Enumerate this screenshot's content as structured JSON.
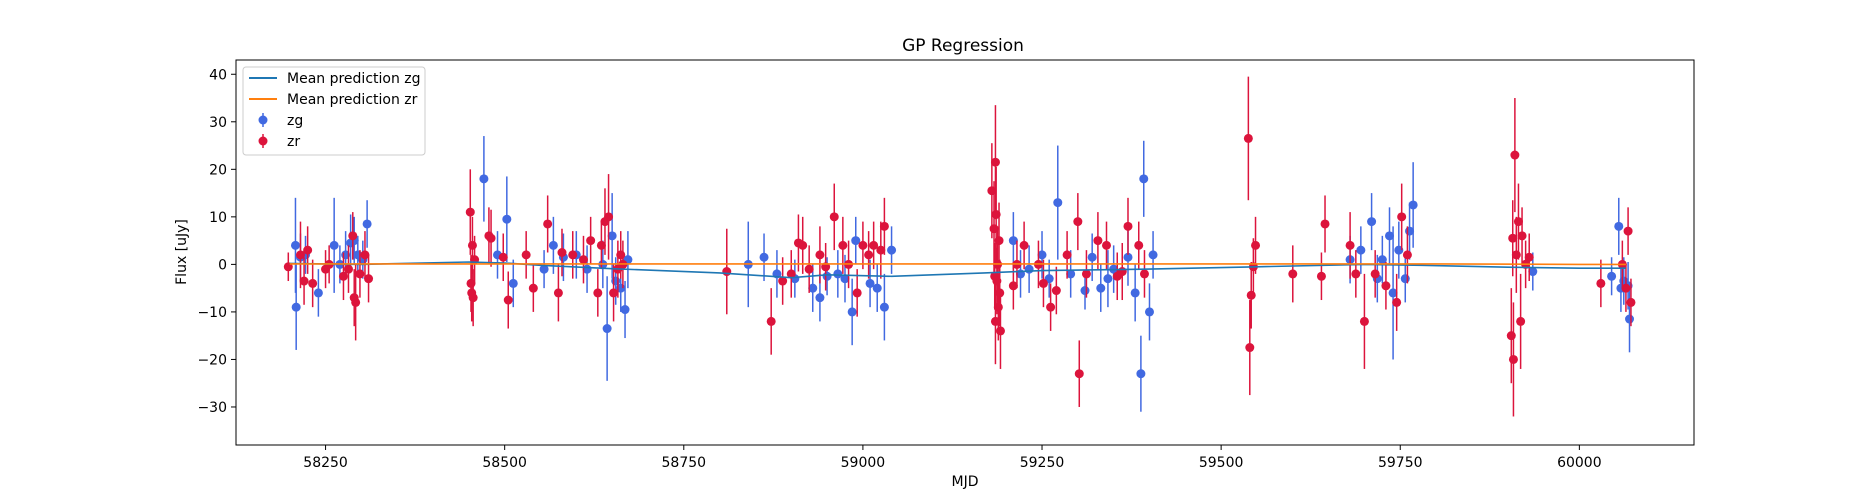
{
  "chart_data": {
    "type": "scatter",
    "title": "GP Regression",
    "xlabel": "MJD",
    "ylabel": "Flux [uJy]",
    "xlim": [
      58125,
      60160
    ],
    "ylim": [
      -38,
      43
    ],
    "xticks": [
      58250,
      58500,
      58750,
      59000,
      59250,
      59500,
      59750,
      60000
    ],
    "yticks": [
      -30,
      -20,
      -10,
      0,
      10,
      20,
      30,
      40
    ],
    "grid": false,
    "legend_position": "top-left",
    "legend": [
      {
        "label": "Mean prediction zg",
        "kind": "line",
        "color": "#1f77b4"
      },
      {
        "label": "Mean prediction zr",
        "kind": "line",
        "color": "#ff7f0e"
      },
      {
        "label": "zg",
        "kind": "errorbar",
        "color": "#4169e1"
      },
      {
        "label": "zr",
        "kind": "errorbar",
        "color": "#dc143c"
      }
    ],
    "lines": [
      {
        "name": "Mean prediction zg",
        "color": "#1f77b4",
        "x": [
          58200,
          58300,
          58450,
          58500,
          58550,
          58650,
          58800,
          58900,
          58950,
          59040,
          59170,
          59250,
          59400,
          59550,
          59700,
          59780,
          59900,
          60000,
          60065
        ],
        "y": [
          0.2,
          0.0,
          0.5,
          0.3,
          -0.2,
          -0.9,
          -1.8,
          -2.8,
          -2.2,
          -2.5,
          -1.8,
          -1.3,
          -1.0,
          -0.5,
          0.0,
          -0.2,
          -0.6,
          -0.8,
          -0.8
        ]
      },
      {
        "name": "Mean prediction zr",
        "color": "#ff7f0e",
        "x": [
          58200,
          58400,
          58600,
          58800,
          59000,
          59200,
          59400,
          59600,
          59800,
          60000,
          60065
        ],
        "y": [
          0.1,
          0.1,
          0.1,
          0.1,
          0.1,
          0.1,
          0.1,
          0.1,
          0.1,
          0.0,
          0.0
        ]
      }
    ],
    "series": [
      {
        "name": "zg",
        "color": "#4169e1",
        "points": [
          [
            58208,
            4,
            10
          ],
          [
            58209,
            -9,
            9
          ],
          [
            58215,
            1.5,
            5
          ],
          [
            58222,
            2,
            4
          ],
          [
            58240,
            -6,
            5
          ],
          [
            58262,
            4,
            10
          ],
          [
            58270,
            0,
            4
          ],
          [
            58278,
            2,
            5
          ],
          [
            58285,
            4.5,
            6
          ],
          [
            58290,
            5,
            5
          ],
          [
            58295,
            2,
            4
          ],
          [
            58302,
            1,
            4
          ],
          [
            58308,
            8.5,
            5
          ],
          [
            58471,
            18,
            9
          ],
          [
            58490,
            2,
            5
          ],
          [
            58503,
            9.5,
            9
          ],
          [
            58512,
            -4,
            5
          ],
          [
            58555,
            -1,
            4
          ],
          [
            58568,
            4,
            6
          ],
          [
            58582,
            1.5,
            5
          ],
          [
            58600,
            2,
            5
          ],
          [
            58615,
            -1,
            5
          ],
          [
            58637,
            0,
            5
          ],
          [
            58643,
            -13.5,
            11
          ],
          [
            58650,
            6,
            9
          ],
          [
            58655,
            -3.5,
            5
          ],
          [
            58662,
            -5,
            5
          ],
          [
            58668,
            -9.5,
            6
          ],
          [
            58672,
            1,
            6
          ],
          [
            58840,
            0,
            9
          ],
          [
            58862,
            1.5,
            5
          ],
          [
            58880,
            -2,
            5
          ],
          [
            58905,
            -3,
            4
          ],
          [
            58930,
            -5,
            5
          ],
          [
            58940,
            -7,
            5
          ],
          [
            58950,
            -2.5,
            4
          ],
          [
            58965,
            -2,
            5
          ],
          [
            58975,
            -3,
            5
          ],
          [
            58985,
            -10,
            7
          ],
          [
            58990,
            5,
            5
          ],
          [
            59010,
            -4,
            5
          ],
          [
            59020,
            -5,
            5
          ],
          [
            59030,
            -9,
            7
          ],
          [
            59040,
            3,
            5
          ],
          [
            59210,
            5,
            6
          ],
          [
            59220,
            -2,
            5
          ],
          [
            59232,
            -1,
            5
          ],
          [
            59250,
            2,
            5
          ],
          [
            59260,
            -3,
            4
          ],
          [
            59272,
            13,
            12
          ],
          [
            59290,
            -2,
            5
          ],
          [
            59310,
            -5.5,
            4
          ],
          [
            59320,
            1.5,
            5
          ],
          [
            59332,
            -5,
            5
          ],
          [
            59342,
            -3,
            6
          ],
          [
            59350,
            -1,
            5
          ],
          [
            59370,
            1.5,
            6
          ],
          [
            59380,
            -6,
            6
          ],
          [
            59388,
            -23,
            8
          ],
          [
            59392,
            18,
            8
          ],
          [
            59400,
            -10,
            6
          ],
          [
            59405,
            2,
            5
          ],
          [
            59680,
            1,
            5
          ],
          [
            59695,
            3,
            5
          ],
          [
            59710,
            9,
            6
          ],
          [
            59718,
            -3,
            5
          ],
          [
            59725,
            1,
            5
          ],
          [
            59735,
            6,
            6
          ],
          [
            59740,
            -6,
            14
          ],
          [
            59748,
            3,
            6
          ],
          [
            59757,
            -3,
            5
          ],
          [
            59763,
            7,
            6
          ],
          [
            59768,
            12.5,
            9
          ],
          [
            59935,
            -1.5,
            4
          ],
          [
            60045,
            -2.5,
            4
          ],
          [
            60055,
            8,
            6
          ],
          [
            60058,
            -5,
            5
          ],
          [
            60062,
            -3.5,
            5
          ],
          [
            60068,
            -4.5,
            5
          ],
          [
            60070,
            -11.5,
            7
          ]
        ]
      },
      {
        "name": "zr",
        "color": "#dc143c",
        "points": [
          [
            58198,
            -0.5,
            3
          ],
          [
            58215,
            2,
            7
          ],
          [
            58220,
            -3.5,
            5
          ],
          [
            58225,
            3,
            5
          ],
          [
            58232,
            -4,
            5
          ],
          [
            58250,
            -1,
            4
          ],
          [
            58255,
            0,
            4
          ],
          [
            58275,
            -2.5,
            5
          ],
          [
            58282,
            -1,
            5
          ],
          [
            58290,
            -7,
            6
          ],
          [
            58292,
            -8,
            8
          ],
          [
            58288,
            6,
            5
          ],
          [
            58298,
            -2,
            5
          ],
          [
            58305,
            2,
            5
          ],
          [
            58310,
            -3,
            5
          ],
          [
            58452,
            11,
            9
          ],
          [
            58455,
            4,
            6
          ],
          [
            58458,
            1,
            5
          ],
          [
            58453,
            -4,
            6
          ],
          [
            58454,
            -6,
            6
          ],
          [
            58456,
            -7,
            6
          ],
          [
            58478,
            6,
            6
          ],
          [
            58481,
            5.5,
            6
          ],
          [
            58498,
            1.5,
            5
          ],
          [
            58505,
            -7.5,
            6
          ],
          [
            58540,
            -5,
            5
          ],
          [
            58530,
            2,
            5
          ],
          [
            58560,
            8.5,
            6
          ],
          [
            58575,
            -6,
            6
          ],
          [
            58580,
            2.5,
            5
          ],
          [
            58595,
            2,
            5
          ],
          [
            58610,
            1,
            5
          ],
          [
            58620,
            5,
            5
          ],
          [
            58630,
            -6,
            5
          ],
          [
            58635,
            4,
            5
          ],
          [
            58640,
            9,
            7
          ],
          [
            58645,
            10,
            9
          ],
          [
            58652,
            -6,
            6
          ],
          [
            58658,
            -1,
            6
          ],
          [
            58662,
            2,
            5
          ],
          [
            58665,
            0,
            5
          ],
          [
            58810,
            -1.5,
            9
          ],
          [
            58872,
            -12,
            7
          ],
          [
            58888,
            -3.5,
            5
          ],
          [
            58900,
            -2,
            5
          ],
          [
            58910,
            4.5,
            6
          ],
          [
            58916,
            4,
            6
          ],
          [
            58925,
            -1,
            5
          ],
          [
            58940,
            2,
            6
          ],
          [
            58948,
            -0.5,
            5
          ],
          [
            58960,
            10,
            7
          ],
          [
            58972,
            4,
            6
          ],
          [
            58980,
            0,
            5
          ],
          [
            58992,
            -6,
            5
          ],
          [
            59000,
            4,
            5
          ],
          [
            59008,
            2,
            5
          ],
          [
            59015,
            4,
            5
          ],
          [
            59025,
            3,
            6
          ],
          [
            59030,
            8,
            6
          ],
          [
            59180,
            15.5,
            10
          ],
          [
            59185,
            21.5,
            12
          ],
          [
            59183,
            7.5,
            10
          ],
          [
            59186,
            10.5,
            10
          ],
          [
            59190,
            5,
            8
          ],
          [
            59188,
            0,
            8
          ],
          [
            59184,
            -2.5,
            7
          ],
          [
            59187,
            -3.5,
            7
          ],
          [
            59191,
            -6,
            7
          ],
          [
            59189,
            -9,
            7
          ],
          [
            59185,
            -12,
            9
          ],
          [
            59192,
            -14,
            8
          ],
          [
            59210,
            -4.5,
            5
          ],
          [
            59215,
            0,
            5
          ],
          [
            59225,
            4,
            5
          ],
          [
            59245,
            0,
            5
          ],
          [
            59252,
            -4,
            5
          ],
          [
            59262,
            -9,
            5
          ],
          [
            59270,
            -5.5,
            5
          ],
          [
            59285,
            2,
            5
          ],
          [
            59300,
            9,
            6
          ],
          [
            59302,
            -23,
            7
          ],
          [
            59312,
            -2,
            5
          ],
          [
            59328,
            5,
            6
          ],
          [
            59340,
            4,
            5
          ],
          [
            59355,
            -2.5,
            5
          ],
          [
            59362,
            -1.5,
            6
          ],
          [
            59370,
            8,
            6
          ],
          [
            59385,
            4,
            5
          ],
          [
            59393,
            -2,
            5
          ],
          [
            59538,
            26.5,
            13
          ],
          [
            59540,
            -17.5,
            10
          ],
          [
            59542,
            -6.5,
            7
          ],
          [
            59545,
            -0.5,
            6
          ],
          [
            59548,
            4,
            6
          ],
          [
            59600,
            -2,
            6
          ],
          [
            59640,
            -2.5,
            5
          ],
          [
            59645,
            8.5,
            6
          ],
          [
            59680,
            4,
            7
          ],
          [
            59688,
            -2,
            5
          ],
          [
            59700,
            -12,
            10
          ],
          [
            59715,
            -2,
            5
          ],
          [
            59730,
            -4.5,
            5
          ],
          [
            59745,
            -8,
            6
          ],
          [
            59752,
            10,
            7
          ],
          [
            59760,
            2,
            6
          ],
          [
            59905,
            -15,
            10
          ],
          [
            59908,
            -20,
            12
          ],
          [
            59910,
            23,
            12
          ],
          [
            59907,
            5.5,
            8
          ],
          [
            59912,
            2,
            8
          ],
          [
            59915,
            9,
            8
          ],
          [
            59918,
            -12,
            10
          ],
          [
            59920,
            6,
            6
          ],
          [
            59925,
            0,
            5
          ],
          [
            59930,
            1.5,
            5
          ],
          [
            60030,
            -4,
            5
          ],
          [
            60060,
            0,
            5
          ],
          [
            60065,
            -5,
            5
          ],
          [
            60068,
            7,
            5
          ],
          [
            60072,
            -8,
            5
          ]
        ]
      }
    ]
  }
}
